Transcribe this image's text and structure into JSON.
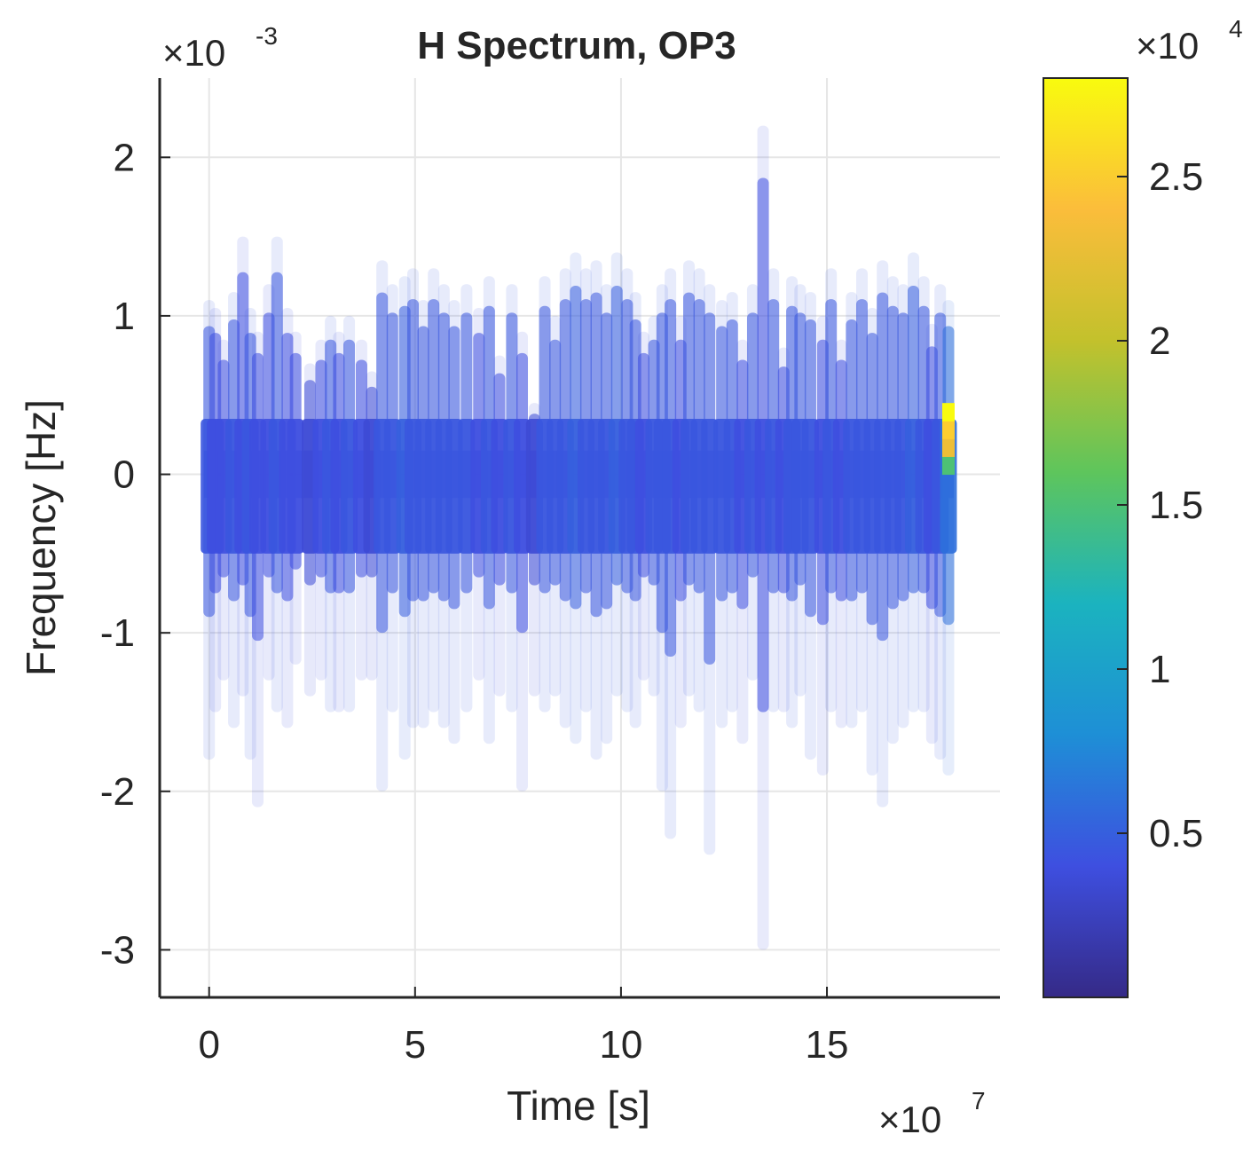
{
  "chart_data": [
    {
      "type": "heatmap",
      "title": "H Spectrum, OP3",
      "xlabel": "Time [s]",
      "ylabel": "Frequency [Hz]",
      "x_multiplier": {
        "base": "×10",
        "exp": "7"
      },
      "y_multiplier": {
        "base": "×10",
        "exp": "-3"
      },
      "xlim": [
        -1.2,
        19.2
      ],
      "ylim": [
        -3.3,
        2.5
      ],
      "x_ticks": [
        0,
        5,
        10,
        15
      ],
      "x_tick_labels": [
        "0",
        "5",
        "10",
        "15"
      ],
      "y_ticks": [
        -3,
        -2,
        -1,
        0,
        1,
        2
      ],
      "y_tick_labels": [
        "-3",
        "-2",
        "-1",
        "0",
        "1",
        "2"
      ],
      "grid": true,
      "colormap": "parula",
      "colors": [
        "#352a87",
        "#3e4fe0",
        "#1e8fd6",
        "#1bb3bf",
        "#5ec55c",
        "#c3c12c",
        "#fbbd3b",
        "#f9fb0e"
      ],
      "x": [
        0.0,
        0.15,
        0.35,
        0.6,
        0.82,
        1.0,
        1.18,
        1.45,
        1.65,
        1.9,
        2.1,
        2.45,
        2.72,
        2.95,
        3.15,
        3.4,
        3.7,
        3.95,
        4.2,
        4.45,
        4.75,
        4.95,
        5.2,
        5.45,
        5.7,
        5.95,
        6.25,
        6.55,
        6.8,
        7.05,
        7.35,
        7.6,
        7.9,
        8.15,
        8.4,
        8.65,
        8.9,
        9.15,
        9.4,
        9.65,
        9.9,
        10.15,
        10.35,
        10.55,
        10.8,
        11.0,
        11.2,
        11.45,
        11.65,
        11.9,
        12.15,
        12.45,
        12.7,
        12.95,
        13.2,
        13.45,
        13.7,
        13.95,
        14.15,
        14.35,
        14.6,
        14.9,
        15.1,
        15.35,
        15.6,
        15.85,
        16.1,
        16.35,
        16.6,
        16.85,
        17.1,
        17.35,
        17.55,
        17.75,
        17.95
      ],
      "y_upper": [
        1.1,
        1.05,
        0.85,
        1.15,
        1.5,
        1.05,
        0.9,
        1.2,
        1.5,
        1.05,
        0.9,
        0.7,
        0.85,
        1.0,
        0.9,
        1.0,
        0.85,
        0.65,
        1.35,
        1.2,
        1.25,
        1.3,
        1.1,
        1.3,
        1.2,
        1.1,
        1.2,
        1.05,
        1.25,
        0.75,
        1.2,
        0.9,
        0.45,
        1.25,
        1.0,
        1.3,
        1.4,
        1.3,
        1.35,
        1.2,
        1.4,
        1.3,
        1.15,
        0.9,
        1.0,
        1.2,
        1.3,
        1.0,
        1.35,
        1.3,
        1.2,
        1.1,
        1.15,
        0.85,
        1.2,
        2.2,
        1.3,
        0.8,
        1.25,
        1.2,
        1.15,
        1.0,
        1.3,
        0.85,
        1.15,
        1.3,
        1.05,
        1.35,
        1.25,
        1.2,
        1.4,
        1.25,
        0.95,
        1.2,
        1.1
      ],
      "y_lower": [
        -1.8,
        -1.5,
        -1.3,
        -1.6,
        -1.4,
        -1.8,
        -2.1,
        -1.3,
        -1.5,
        -1.6,
        -1.2,
        -1.4,
        -1.3,
        -1.5,
        -1.5,
        -1.5,
        -1.3,
        -1.3,
        -2.0,
        -1.5,
        -1.8,
        -1.6,
        -1.6,
        -1.5,
        -1.6,
        -1.7,
        -1.5,
        -1.3,
        -1.7,
        -1.4,
        -1.5,
        -2.0,
        -1.4,
        -1.5,
        -1.4,
        -1.6,
        -1.7,
        -1.5,
        -1.8,
        -1.7,
        -1.4,
        -1.5,
        -1.6,
        -1.3,
        -1.4,
        -2.0,
        -2.3,
        -1.6,
        -1.4,
        -1.5,
        -2.4,
        -1.6,
        -1.5,
        -1.7,
        -1.3,
        -3.0,
        -1.5,
        -1.5,
        -1.6,
        -1.4,
        -1.8,
        -1.9,
        -1.5,
        -1.6,
        -1.6,
        -1.5,
        -1.9,
        -2.1,
        -1.7,
        -1.6,
        -1.5,
        -1.5,
        -1.7,
        -1.8,
        -1.9
      ],
      "values_core": [
        0.45,
        0.4,
        0.4,
        0.45,
        0.4,
        0.45,
        0.4,
        0.4,
        0.45,
        0.4,
        0.4,
        0.35,
        0.4,
        0.45,
        0.4,
        0.45,
        0.4,
        0.35,
        0.45,
        0.45,
        0.5,
        0.45,
        0.45,
        0.45,
        0.45,
        0.45,
        0.45,
        0.4,
        0.45,
        0.4,
        0.45,
        0.4,
        0.35,
        0.45,
        0.45,
        0.45,
        0.5,
        0.45,
        0.45,
        0.45,
        0.5,
        0.45,
        0.45,
        0.4,
        0.45,
        0.45,
        0.45,
        0.4,
        0.45,
        0.45,
        0.45,
        0.45,
        0.45,
        0.4,
        0.45,
        0.4,
        0.45,
        0.4,
        0.45,
        0.45,
        0.45,
        0.4,
        0.45,
        0.4,
        0.45,
        0.45,
        0.45,
        0.45,
        0.45,
        0.45,
        0.5,
        0.45,
        0.4,
        0.45,
        0.6
      ],
      "hotspot": {
        "x": 17.95,
        "y_range": [
          0.0,
          0.45
        ],
        "values": [
          1.5,
          2.3,
          2.5,
          2.8
        ]
      },
      "colorbar": {
        "multiplier": {
          "base": "×10",
          "exp": "4"
        },
        "lim": [
          0.0,
          2.8
        ],
        "ticks": [
          0.5,
          1.0,
          1.5,
          2.0,
          2.5
        ],
        "tick_labels": [
          "0.5",
          "1",
          "1.5",
          "2",
          "2.5"
        ]
      }
    }
  ]
}
